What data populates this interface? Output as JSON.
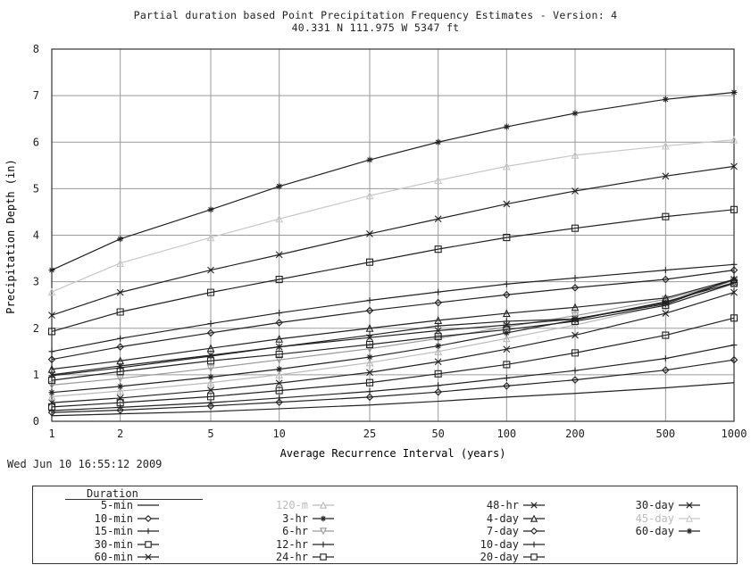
{
  "title": {
    "line1": "Partial duration based Point Precipitation Frequency Estimates   - Version: 4",
    "line2": "40.331 N 111.975 W 5347 ft"
  },
  "timestamp": "Wed Jun 10 16:55:12 2009",
  "legend_title": "Duration",
  "chart_data": {
    "type": "line",
    "xlabel": "Average Recurrence Interval (years)",
    "ylabel": "Precipitation Depth (in)",
    "x_scale": "log",
    "x": [
      1,
      2,
      5,
      10,
      25,
      50,
      100,
      200,
      500,
      1000
    ],
    "x_tick_labels": [
      "1",
      "2",
      "5",
      "10",
      "25",
      "50",
      "100",
      "200",
      "500",
      "1000"
    ],
    "ylim": [
      0,
      8
    ],
    "y_ticks": [
      0,
      1,
      2,
      3,
      4,
      5,
      6,
      7,
      8
    ],
    "grid": true,
    "legend_position": "bottom",
    "series": [
      {
        "name": "5-min",
        "marker": "none",
        "color": "#222222",
        "values": [
          0.12,
          0.16,
          0.21,
          0.27,
          0.35,
          0.43,
          0.52,
          0.6,
          0.72,
          0.83
        ]
      },
      {
        "name": "10-min",
        "marker": "diamond",
        "color": "#222222",
        "values": [
          0.19,
          0.24,
          0.33,
          0.41,
          0.52,
          0.63,
          0.76,
          0.89,
          1.1,
          1.32
        ]
      },
      {
        "name": "15-min",
        "marker": "plus",
        "color": "#222222",
        "values": [
          0.23,
          0.3,
          0.4,
          0.5,
          0.64,
          0.77,
          0.93,
          1.09,
          1.35,
          1.64
        ]
      },
      {
        "name": "30-min",
        "marker": "square",
        "color": "#222222",
        "values": [
          0.31,
          0.4,
          0.53,
          0.66,
          0.83,
          1.02,
          1.22,
          1.47,
          1.85,
          2.22
        ]
      },
      {
        "name": "60-min",
        "marker": "x",
        "color": "#222222",
        "values": [
          0.4,
          0.5,
          0.67,
          0.82,
          1.05,
          1.28,
          1.55,
          1.85,
          2.32,
          2.77
        ]
      },
      {
        "name": "120-m",
        "marker": "triangle",
        "color": "#bbbbbb",
        "values": [
          0.53,
          0.65,
          0.83,
          1.0,
          1.26,
          1.5,
          1.78,
          2.07,
          2.5,
          2.95
        ]
      },
      {
        "name": "3-hr",
        "marker": "asterisk",
        "color": "#222222",
        "values": [
          0.62,
          0.75,
          0.95,
          1.12,
          1.38,
          1.62,
          1.9,
          2.18,
          2.57,
          2.98
        ]
      },
      {
        "name": "6-hr",
        "marker": "tri-down",
        "color": "#999999",
        "values": [
          0.78,
          0.92,
          1.14,
          1.32,
          1.56,
          1.78,
          2.03,
          2.27,
          2.62,
          3.02
        ]
      },
      {
        "name": "12-hr",
        "marker": "plus",
        "color": "#222222",
        "values": [
          0.98,
          1.15,
          1.4,
          1.6,
          1.85,
          2.05,
          2.15,
          2.2,
          2.52,
          3.05
        ]
      },
      {
        "name": "24-hr",
        "marker": "square",
        "color": "#222222",
        "values": [
          0.88,
          1.07,
          1.3,
          1.44,
          1.65,
          1.82,
          1.97,
          2.15,
          2.49,
          2.97
        ]
      },
      {
        "name": "48-hr",
        "marker": "x",
        "color": "#222222",
        "values": [
          1.0,
          1.19,
          1.42,
          1.6,
          1.8,
          1.95,
          2.07,
          2.2,
          2.55,
          3.05
        ]
      },
      {
        "name": "4-day",
        "marker": "triangle",
        "color": "#222222",
        "values": [
          1.12,
          1.3,
          1.57,
          1.77,
          2.0,
          2.17,
          2.32,
          2.45,
          2.65,
          3.05
        ]
      },
      {
        "name": "7-day",
        "marker": "diamond",
        "color": "#222222",
        "values": [
          1.33,
          1.6,
          1.9,
          2.12,
          2.38,
          2.55,
          2.72,
          2.87,
          3.05,
          3.25
        ]
      },
      {
        "name": "10-day",
        "marker": "plus",
        "color": "#222222",
        "values": [
          1.5,
          1.78,
          2.1,
          2.33,
          2.6,
          2.78,
          2.95,
          3.08,
          3.25,
          3.37
        ]
      },
      {
        "name": "20-day",
        "marker": "square",
        "color": "#222222",
        "values": [
          1.93,
          2.35,
          2.77,
          3.05,
          3.42,
          3.7,
          3.95,
          4.15,
          4.4,
          4.55
        ]
      },
      {
        "name": "30-day",
        "marker": "x",
        "color": "#222222",
        "values": [
          2.28,
          2.77,
          3.25,
          3.58,
          4.03,
          4.35,
          4.67,
          4.95,
          5.27,
          5.48
        ]
      },
      {
        "name": "45-day",
        "marker": "triangle",
        "color": "#c8c8c8",
        "values": [
          2.78,
          3.4,
          3.95,
          4.35,
          4.85,
          5.18,
          5.48,
          5.72,
          5.92,
          6.05
        ]
      },
      {
        "name": "60-day",
        "marker": "asterisk",
        "color": "#222222",
        "values": [
          3.25,
          3.92,
          4.55,
          5.05,
          5.62,
          6.0,
          6.33,
          6.62,
          6.92,
          7.07
        ]
      }
    ]
  }
}
